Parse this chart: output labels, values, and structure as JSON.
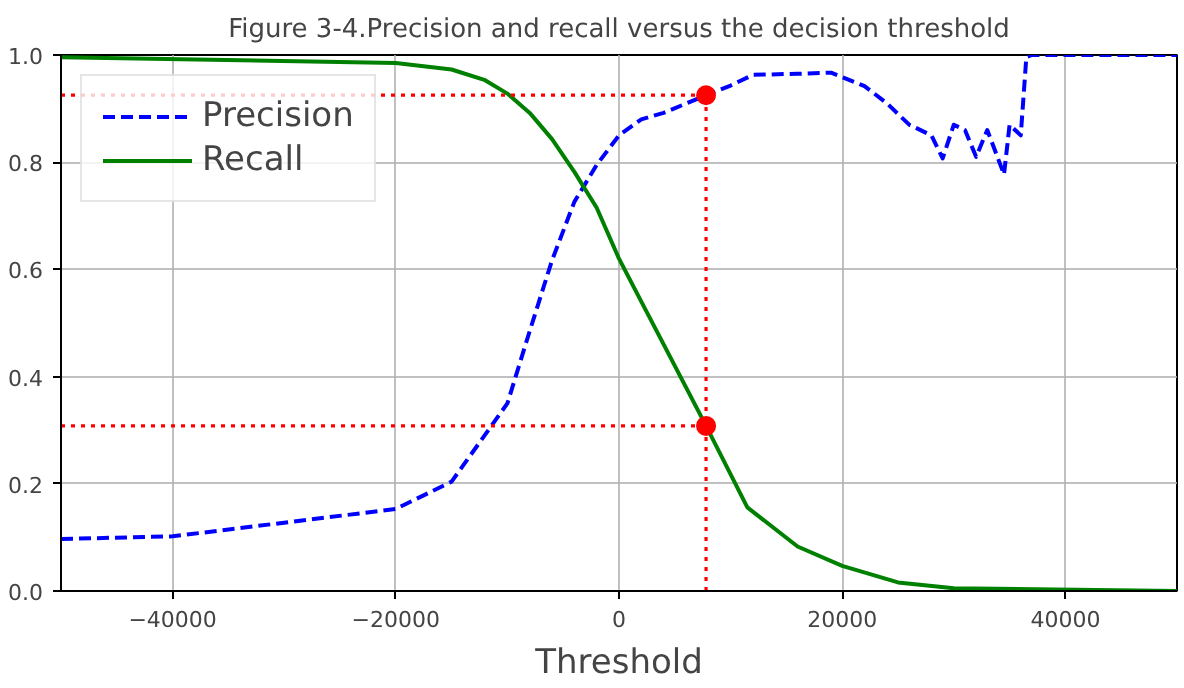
{
  "chart_data": {
    "type": "line",
    "title": "Figure 3-4.Precision and recall versus the decision threshold",
    "xlabel": "Threshold",
    "xlim": [
      -50000,
      50000
    ],
    "xticks": [
      {
        "value": -40000,
        "label": "−40000"
      },
      {
        "value": -20000,
        "label": "−20000"
      },
      0,
      20000,
      40000
    ],
    "ylim": [
      0,
      1
    ],
    "yticks": [
      {
        "value": 0,
        "label": "0.0"
      },
      {
        "value": 0.2,
        "label": "0.2"
      },
      {
        "value": 0.4,
        "label": "0.4"
      },
      {
        "value": 0.6,
        "label": "0.6"
      },
      {
        "value": 0.8,
        "label": "0.8"
      },
      {
        "value": 1,
        "label": "1.0"
      }
    ],
    "grid": true,
    "legend": "top left",
    "series": [
      {
        "name": "Precision",
        "color": "#0000ff",
        "line_style": "dashed",
        "x": [
          -50000,
          -40000,
          -20000,
          -15000,
          -10000,
          -8000,
          -6000,
          -4000,
          -2000,
          0,
          2000,
          4000,
          7800,
          10000,
          12000,
          16000,
          19000,
          22000,
          24000,
          26000,
          28000,
          29000,
          30000,
          31000,
          32000,
          33000,
          34500,
          35000,
          36000,
          36500,
          37000,
          50000
        ],
        "values": [
          0.097,
          0.102,
          0.153,
          0.204,
          0.35,
          0.485,
          0.617,
          0.726,
          0.795,
          0.85,
          0.88,
          0.892,
          0.925,
          0.943,
          0.963,
          0.965,
          0.967,
          0.942,
          0.91,
          0.87,
          0.85,
          0.807,
          0.87,
          0.86,
          0.81,
          0.86,
          0.777,
          0.87,
          0.85,
          0.996,
          1.0,
          1.0
        ]
      },
      {
        "name": "Recall",
        "color": "#008000",
        "line_style": "solid",
        "x": [
          -50000,
          -20000,
          -15000,
          -12000,
          -10000,
          -8000,
          -6000,
          -4000,
          -2000,
          0,
          2000,
          4000,
          7800,
          11500,
          16000,
          20000,
          25000,
          30000,
          50000
        ],
        "values": [
          0.996,
          0.985,
          0.973,
          0.953,
          0.928,
          0.892,
          0.843,
          0.782,
          0.715,
          0.62,
          0.54,
          0.46,
          0.308,
          0.156,
          0.083,
          0.047,
          0.016,
          0.005,
          0.0
        ]
      },
      {
        "type": "line",
        "color": "#ff0000",
        "line_style": "dotted",
        "x": [
          -50000,
          7800
        ],
        "values": [
          0.925,
          0.925
        ]
      },
      {
        "type": "line",
        "color": "#ff0000",
        "line_style": "dotted",
        "x": [
          -50000,
          7800
        ],
        "values": [
          0.308,
          0.308
        ]
      },
      {
        "type": "line",
        "color": "#ff0000",
        "line_style": "dotted",
        "x": [
          7800,
          7800
        ],
        "values": [
          0,
          0.925
        ]
      },
      {
        "type": "scatter",
        "color": "#ff0000",
        "marker": "circle",
        "x": [
          7800,
          7800
        ],
        "values": [
          0.925,
          0.308
        ]
      }
    ]
  }
}
